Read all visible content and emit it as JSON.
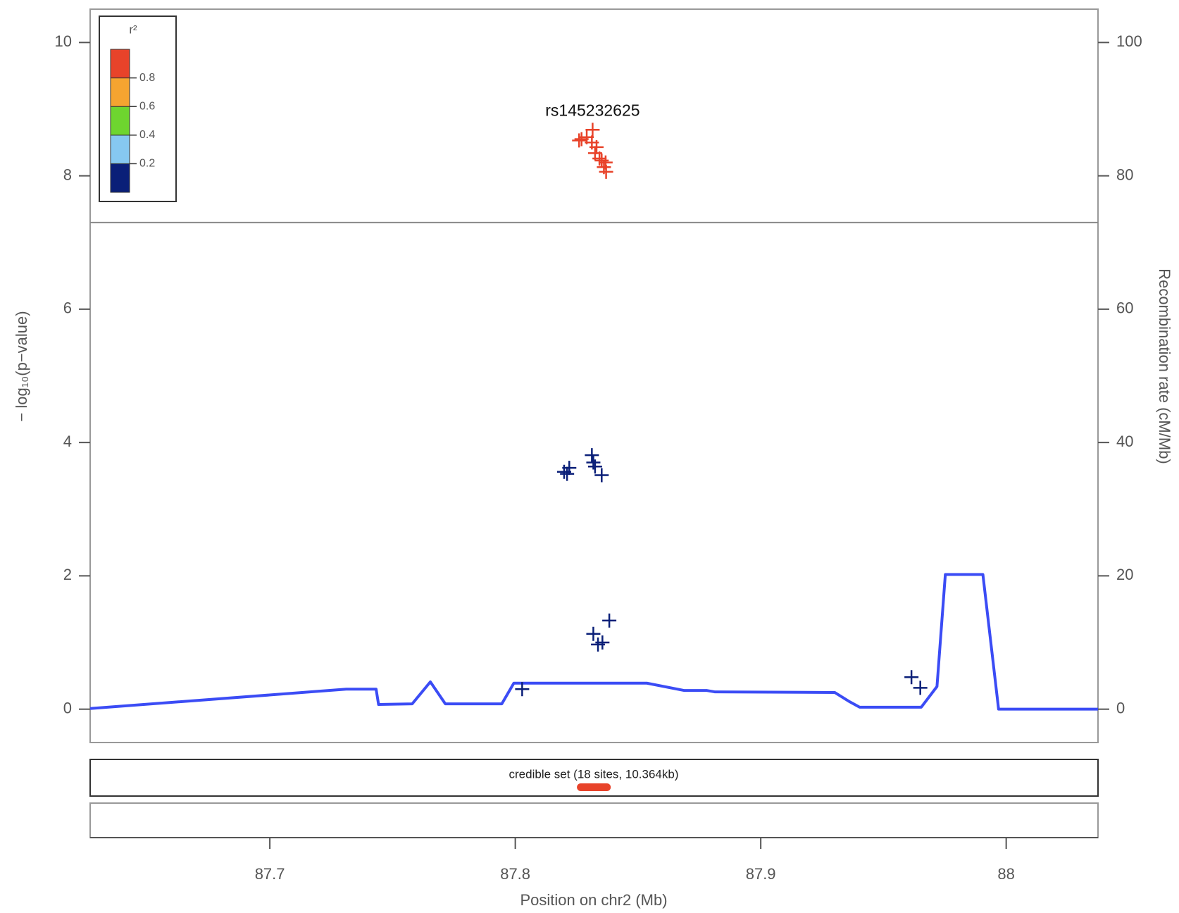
{
  "chart_data": {
    "type": "scatter",
    "x_label": "Position on chr2 (Mb)",
    "y_label": "− log₁₀(p−value)",
    "y2_label": "Recombination rate (cM/Mb)",
    "xlim": [
      87.6268,
      88.0374
    ],
    "xticks": [
      87.7,
      87.8,
      87.9,
      88
    ],
    "ylim": [
      -0.5,
      10.5
    ],
    "yticks": [
      0,
      2,
      4,
      6,
      8,
      10
    ],
    "y2lim": [
      -5,
      105
    ],
    "y2ticks": [
      0,
      20,
      40,
      60,
      80,
      100
    ],
    "signif_line": 7.3,
    "points": {
      "x": [
        87.8315,
        87.827,
        87.8291,
        87.826,
        87.8312,
        87.8331,
        87.8325,
        87.8343,
        87.8352,
        87.8368,
        87.8361,
        87.837,
        87.8199,
        87.822,
        87.8211,
        87.8312,
        87.8318,
        87.8325,
        87.8352,
        87.8383,
        87.8318,
        87.8337,
        87.8355,
        87.8028,
        87.9614,
        87.965
      ],
      "values": [
        8.69,
        8.55,
        8.58,
        8.53,
        8.5,
        8.43,
        8.34,
        8.26,
        8.23,
        8.2,
        8.13,
        8.06,
        3.56,
        3.62,
        3.53,
        3.81,
        3.7,
        3.64,
        3.51,
        1.33,
        1.13,
        0.97,
        1.0,
        0.3,
        0.48,
        0.32
      ],
      "colors": [
        "#e8432a",
        "#e8432a",
        "#e8432a",
        "#e8432a",
        "#e8432a",
        "#e8432a",
        "#e8432a",
        "#e8432a",
        "#e8432a",
        "#e8432a",
        "#e8432a",
        "#e8432a",
        "#0a1f78",
        "#0a1f78",
        "#0a1f78",
        "#0a1f78",
        "#0a1f78",
        "#0a1f78",
        "#0a1f78",
        "#0a1f78",
        "#0a1f78",
        "#0a1f78",
        "#0a1f78",
        "#0a1f78",
        "#0a1f78",
        "#0a1f78"
      ]
    },
    "annotations": [
      {
        "text": "rs145232625",
        "x": 87.8315,
        "y": 8.69
      }
    ],
    "recombination": {
      "axis": "y2",
      "color": "#3b4cf5",
      "x": [
        87.6268,
        87.7311,
        87.7433,
        87.7443,
        87.758,
        87.7654,
        87.7715,
        87.7945,
        87.7994,
        87.8536,
        87.8689,
        87.8781,
        87.8812,
        87.9302,
        87.9363,
        87.9403,
        87.9654,
        87.9718,
        87.9752,
        87.9905,
        87.9969,
        88.0374
      ],
      "values": [
        0.1,
        3.0,
        3.0,
        0.7,
        0.8,
        4.1,
        0.8,
        0.8,
        3.9,
        3.9,
        2.8,
        2.8,
        2.6,
        2.5,
        1.1,
        0.3,
        0.3,
        3.4,
        20.2,
        20.2,
        0,
        0
      ]
    },
    "legend": {
      "title": "r²",
      "ticks": [
        0.2,
        0.4,
        0.6,
        0.8
      ],
      "colors": [
        "#0a1f78",
        "#86c8f0",
        "#6ed52f",
        "#f5a430",
        "#e8432a"
      ]
    },
    "credible_set": {
      "label": "credible set (18 sites, 10.364kb)",
      "x_start": 87.8251,
      "x_end": 87.8389,
      "color": "#e8432a"
    }
  }
}
